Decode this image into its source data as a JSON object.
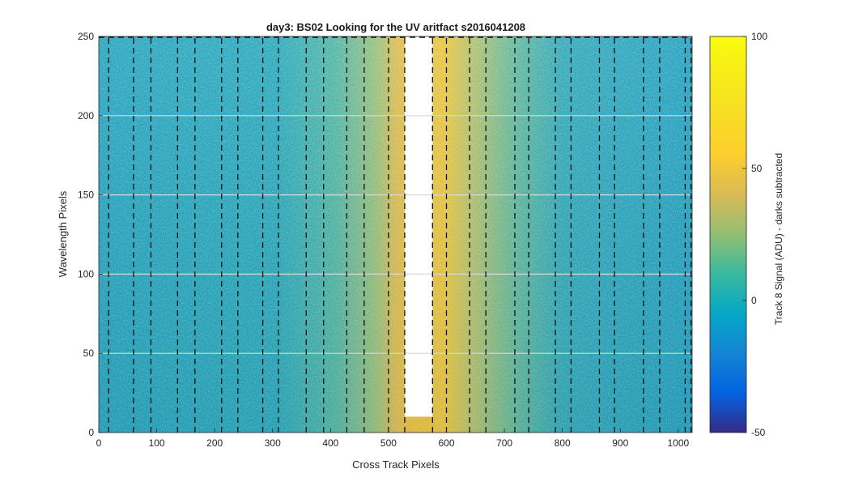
{
  "chart_data": {
    "type": "heatmap",
    "title": "day3: BS02  Looking for the UV aritfact  s2016041208",
    "xlabel": "Cross Track Pixels",
    "ylabel": "Wavelength Pixels",
    "xlim": [
      0,
      1024
    ],
    "ylim": [
      0,
      250
    ],
    "xticks": [
      0,
      100,
      200,
      300,
      400,
      500,
      600,
      700,
      800,
      900,
      1000
    ],
    "yticks": [
      0,
      50,
      100,
      150,
      200,
      250
    ],
    "colorbar": {
      "label": "Track 8 Signal (ADU) - darks subtracted",
      "limits": [
        -50,
        100
      ],
      "ticks": [
        -50,
        0,
        50,
        100
      ],
      "colormap": "parula"
    },
    "saturated_region": {
      "x_start": 528,
      "x_end": 576,
      "y_start": 10,
      "y_end": 250,
      "note_color": "#ffffff"
    },
    "dashed_lines_x": [
      17,
      60,
      90,
      136,
      166,
      212,
      240,
      283,
      310,
      358,
      388,
      428,
      458,
      500,
      528,
      576,
      600,
      640,
      668,
      718,
      742,
      788,
      815,
      864,
      890,
      940,
      968,
      1012,
      1022
    ],
    "grid": true,
    "grid_y": [
      50,
      100,
      150,
      200
    ]
  }
}
